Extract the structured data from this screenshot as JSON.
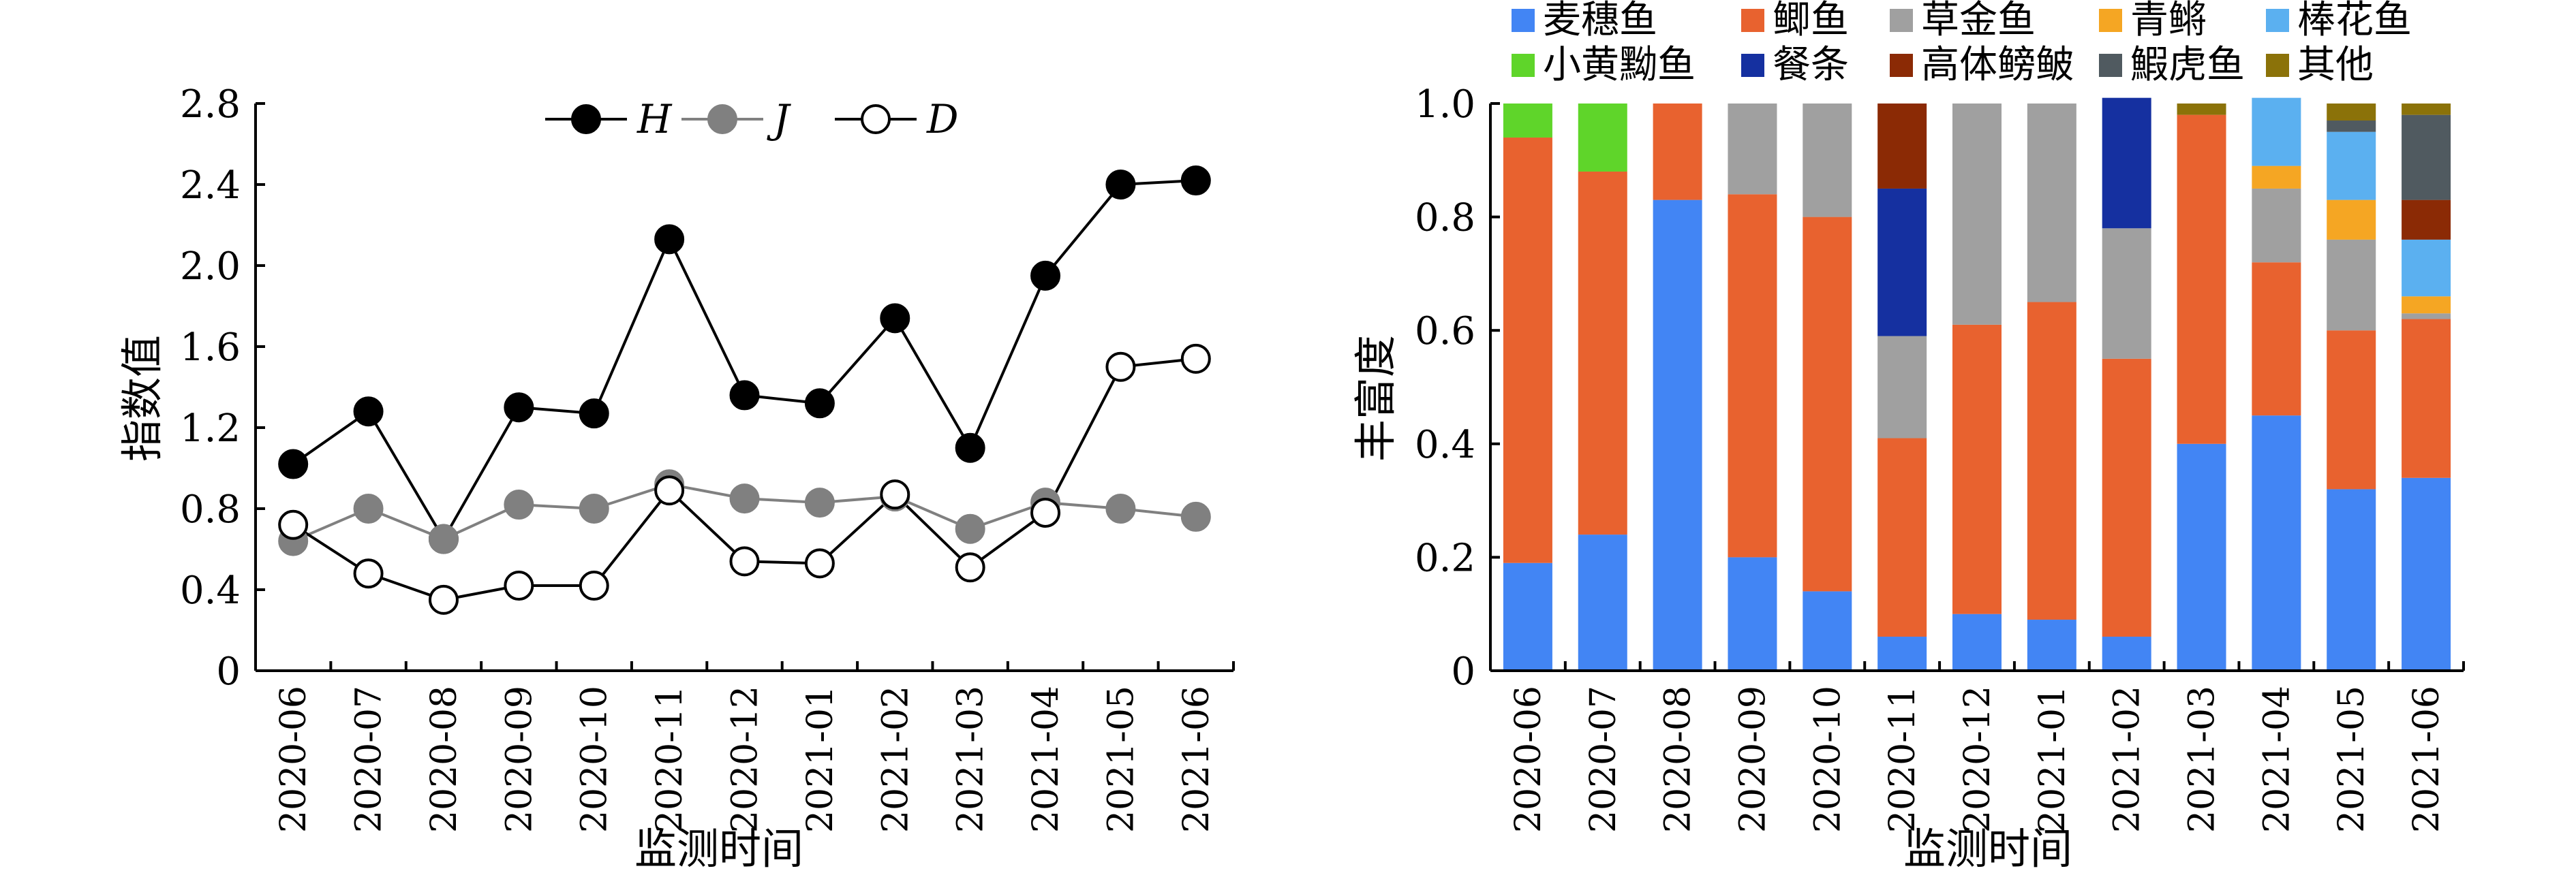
{
  "chart_data": [
    {
      "type": "line",
      "categories": [
        "2020-06",
        "2020-07",
        "2020-08",
        "2020-09",
        "2020-10",
        "2020-11",
        "2020-12",
        "2021-01",
        "2021-02",
        "2021-03",
        "2021-04",
        "2021-05",
        "2021-06"
      ],
      "series": [
        {
          "name": "H",
          "color": "#000000",
          "line_color": "#000000",
          "marker_fill": "#000000",
          "marker_stroke": "#000000",
          "values": [
            1.02,
            1.28,
            0.65,
            1.3,
            1.27,
            2.13,
            1.36,
            1.32,
            1.74,
            1.1,
            1.95,
            2.4,
            2.42
          ]
        },
        {
          "name": "J",
          "color": "#808080",
          "line_color": "#808080",
          "marker_fill": "#808080",
          "marker_stroke": "#808080",
          "values": [
            0.64,
            0.8,
            0.65,
            0.82,
            0.8,
            0.92,
            0.85,
            0.83,
            0.86,
            0.7,
            0.83,
            0.8,
            0.76
          ]
        },
        {
          "name": "D",
          "color": "#000000",
          "line_color": "#000000",
          "marker_fill": "#ffffff",
          "marker_stroke": "#000000",
          "values": [
            0.72,
            0.48,
            0.35,
            0.42,
            0.42,
            0.89,
            0.54,
            0.53,
            0.87,
            0.51,
            0.78,
            1.5,
            1.54
          ]
        }
      ],
      "ylabel": "指数值",
      "xlabel": "监测时间",
      "ylim": [
        0,
        2.8
      ],
      "yticks": [
        0,
        0.4,
        0.8,
        1.2,
        1.6,
        2.0,
        2.4,
        2.8
      ],
      "ytick_labels": [
        "0",
        "0.4",
        "0.8",
        "1.2",
        "1.6",
        "2.0",
        "2.4",
        "2.8"
      ],
      "legend_position": "top-center",
      "grid": false
    },
    {
      "type": "bar",
      "stacked": true,
      "categories": [
        "2020-06",
        "2020-07",
        "2020-08",
        "2020-09",
        "2020-10",
        "2020-11",
        "2020-12",
        "2021-01",
        "2021-02",
        "2021-03",
        "2021-04",
        "2021-05",
        "2021-06"
      ],
      "series": [
        {
          "name": "麦穗鱼",
          "color": "#4285F4",
          "values": [
            0.19,
            0.24,
            0.83,
            0.2,
            0.14,
            0.06,
            0.1,
            0.09,
            0.06,
            0.4,
            0.45,
            0.32,
            0.34
          ]
        },
        {
          "name": "鲫鱼",
          "color": "#E8622F",
          "values": [
            0.75,
            0.64,
            0.17,
            0.64,
            0.66,
            0.35,
            0.51,
            0.56,
            0.49,
            0.58,
            0.27,
            0.28,
            0.28
          ]
        },
        {
          "name": "草金鱼",
          "color": "#A0A0A0",
          "values": [
            0,
            0,
            0,
            0.16,
            0.2,
            0.18,
            0.39,
            0.35,
            0.23,
            0,
            0.13,
            0.16,
            0.01
          ]
        },
        {
          "name": "青鳉",
          "color": "#F5A623",
          "values": [
            0,
            0,
            0,
            0,
            0,
            0,
            0,
            0,
            0,
            0,
            0.04,
            0.07,
            0.03
          ]
        },
        {
          "name": "棒花鱼",
          "color": "#5BB0F0",
          "values": [
            0,
            0,
            0,
            0,
            0,
            0,
            0,
            0,
            0,
            0,
            0.12,
            0.12,
            0.1
          ]
        },
        {
          "name": "小黄黝鱼",
          "color": "#5FD52A",
          "values": [
            0.06,
            0.12,
            0,
            0,
            0,
            0,
            0,
            0,
            0,
            0,
            0,
            0,
            0
          ]
        },
        {
          "name": "餐条",
          "color": "#1530A0",
          "values": [
            0,
            0,
            0,
            0,
            0,
            0.26,
            0,
            0,
            0.23,
            0,
            0,
            0,
            0
          ]
        },
        {
          "name": "高体鳑鲏",
          "color": "#8B2A05",
          "values": [
            0,
            0,
            0,
            0,
            0,
            0.15,
            0,
            0,
            0,
            0,
            0,
            0,
            0.07
          ]
        },
        {
          "name": "鰕虎鱼",
          "color": "#505A60",
          "values": [
            0,
            0,
            0,
            0,
            0,
            0,
            0,
            0,
            0,
            0,
            0,
            0.02,
            0.15
          ]
        },
        {
          "name": "其他",
          "color": "#8B7209",
          "values": [
            0,
            0,
            0,
            0,
            0,
            0,
            0,
            0,
            0,
            0.02,
            0,
            0.03,
            0.02
          ]
        }
      ],
      "ylabel": "丰富度",
      "xlabel": "监测时间",
      "ylim": [
        0,
        1.0
      ],
      "yticks": [
        0,
        0.2,
        0.4,
        0.6,
        0.8,
        1.0
      ],
      "ytick_labels": [
        "0",
        "0.2",
        "0.4",
        "0.6",
        "0.8",
        "1.0"
      ],
      "legend_position": "top",
      "grid": false
    }
  ]
}
